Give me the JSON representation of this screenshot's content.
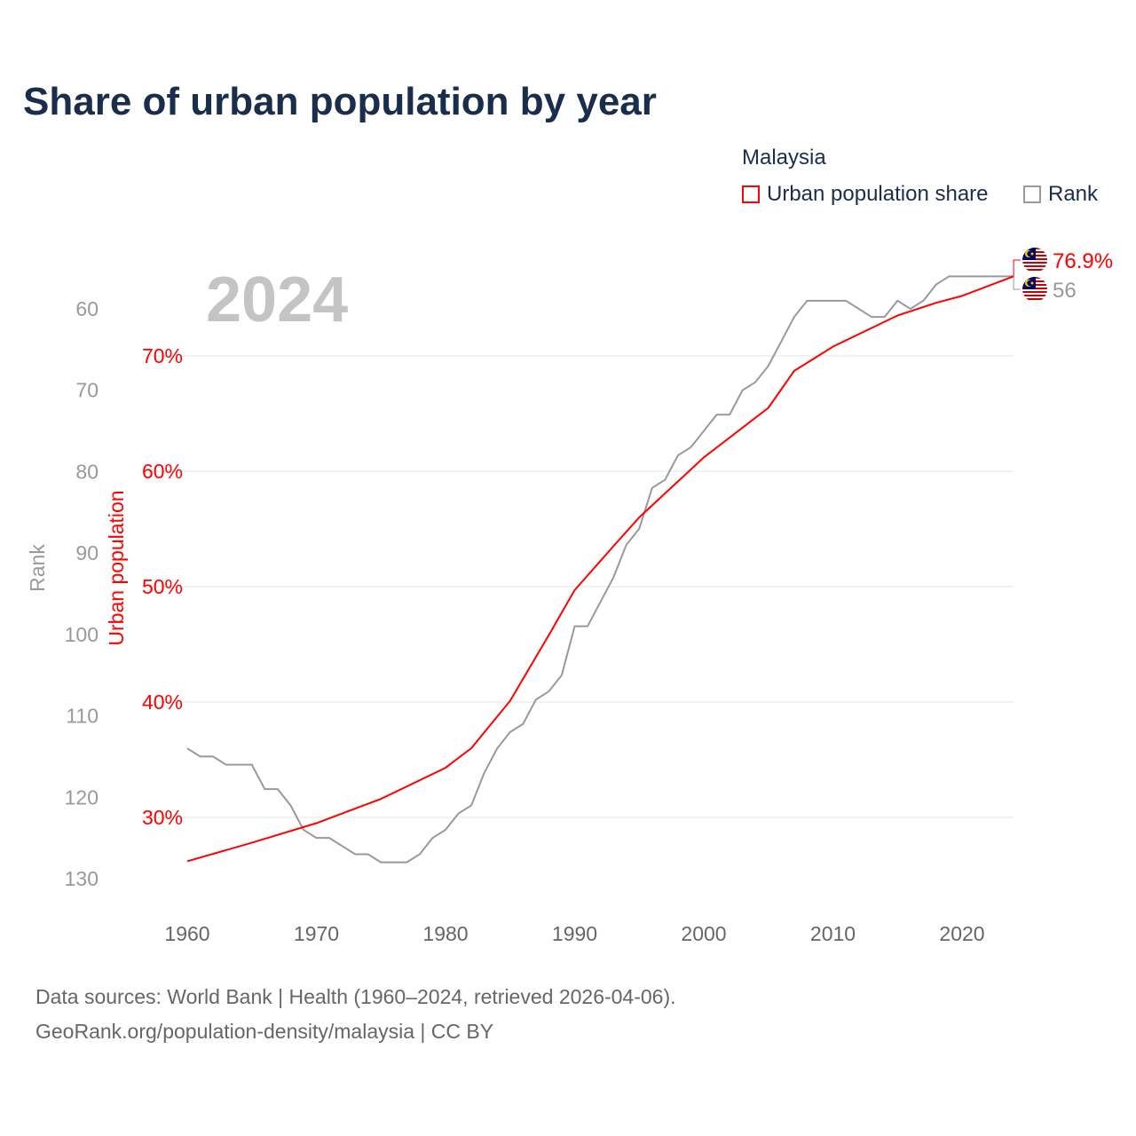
{
  "chart_data": {
    "type": "line",
    "title": "Share of urban population by year",
    "legend_title": "Malaysia",
    "legend_placement": "top-right",
    "year_label": "2024",
    "xlim": [
      1960,
      2024
    ],
    "x_ticks": [
      "1960",
      "1970",
      "1980",
      "1990",
      "2000",
      "2010",
      "2020"
    ],
    "series": [
      {
        "name": "Urban population share",
        "axis": "right-inner",
        "ylabel": "Urban population",
        "color": "#ff0000",
        "y_ticks": [
          30,
          40,
          50,
          60,
          70
        ],
        "y_tick_labels": [
          "30%",
          "40%",
          "50%",
          "60%",
          "70%"
        ],
        "end_label": "76.9%",
        "x": [
          1960,
          1965,
          1970,
          1975,
          1980,
          1982,
          1985,
          1988,
          1990,
          1993,
          1995,
          2000,
          2005,
          2007,
          2010,
          2015,
          2018,
          2020,
          2024
        ],
        "values": [
          26.2,
          27.8,
          29.5,
          31.6,
          34.3,
          36.0,
          40.1,
          45.8,
          49.7,
          53.5,
          56.0,
          61.2,
          65.5,
          68.7,
          70.8,
          73.5,
          74.6,
          75.2,
          76.9
        ]
      },
      {
        "name": "Rank",
        "axis": "left-reversed",
        "ylabel": "Rank",
        "color": "#999999",
        "y_ticks": [
          60,
          70,
          80,
          90,
          100,
          110,
          120,
          130
        ],
        "y_tick_labels": [
          "60",
          "70",
          "80",
          "90",
          "100",
          "110",
          "120",
          "130"
        ],
        "end_label": "56",
        "x": [
          1960,
          1961,
          1962,
          1963,
          1964,
          1965,
          1966,
          1967,
          1968,
          1969,
          1970,
          1971,
          1972,
          1973,
          1974,
          1975,
          1976,
          1977,
          1978,
          1979,
          1980,
          1981,
          1982,
          1983,
          1984,
          1985,
          1986,
          1987,
          1988,
          1989,
          1990,
          1991,
          1992,
          1993,
          1994,
          1995,
          1996,
          1997,
          1998,
          1999,
          2000,
          2001,
          2002,
          2003,
          2004,
          2005,
          2006,
          2007,
          2008,
          2009,
          2010,
          2011,
          2012,
          2013,
          2014,
          2015,
          2016,
          2017,
          2018,
          2019,
          2020,
          2021,
          2022,
          2023,
          2024
        ],
        "values": [
          114,
          115,
          115,
          116,
          116,
          116,
          119,
          119,
          121,
          124,
          125,
          125,
          126,
          127,
          127,
          128,
          128,
          128,
          127,
          125,
          124,
          122,
          121,
          117,
          114,
          112,
          111,
          108,
          107,
          105,
          99,
          99,
          96,
          93,
          89,
          87,
          82,
          81,
          78,
          77,
          75,
          73,
          73,
          70,
          69,
          67,
          64,
          61,
          59,
          59,
          59,
          59,
          60,
          61,
          61,
          59,
          60,
          59,
          57,
          56,
          56,
          56,
          56,
          56,
          56
        ]
      }
    ]
  },
  "footer": {
    "line1": "Data sources: World Bank | Health (1960–2024, retrieved 2026-04-06).",
    "line2": "GeoRank.org/population-density/malaysia | CC BY"
  }
}
